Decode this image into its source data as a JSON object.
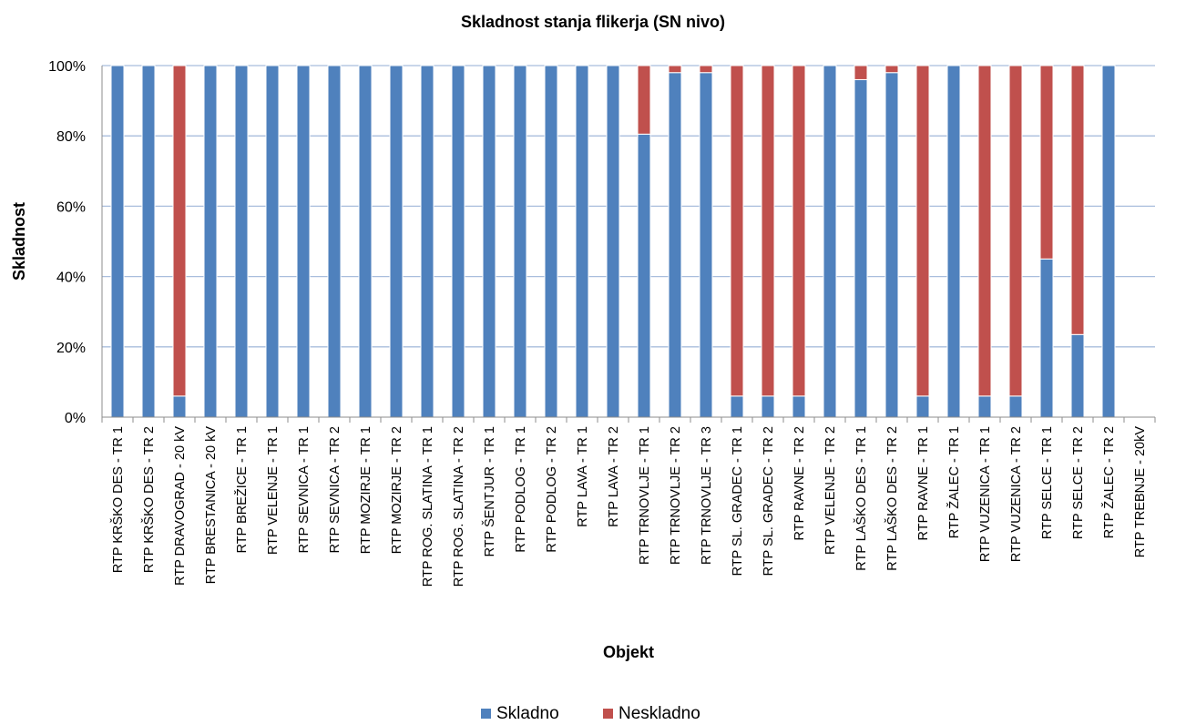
{
  "chart_data": {
    "type": "bar",
    "stacked": true,
    "title": "Skladnost stanja flikerja (SN nivo)",
    "xlabel": "Objekt",
    "ylabel": "Skladnost",
    "ylim": [
      0,
      100
    ],
    "yticks": [
      "0%",
      "20%",
      "40%",
      "60%",
      "80%",
      "100%"
    ],
    "grid": true,
    "legend_position": "bottom",
    "categories": [
      "RTP KRŠKO DES - TR 1",
      "RTP KRŠKO DES - TR 2",
      "RTP DRAVOGRAD - 20 kV",
      "RTP BRESTANICA - 20 kV",
      "RTP BREŽICE - TR 1",
      "RTP VELENJE - TR 1",
      "RTP SEVNICA - TR 1",
      "RTP SEVNICA - TR 2",
      "RTP MOZIRJE - TR 1",
      "RTP MOZIRJE - TR 2",
      "RTP ROG. SLATINA - TR 1",
      "RTP ROG. SLATINA - TR 2",
      "RTP ŠENTJUR - TR 1",
      "RTP PODLOG - TR 1",
      "RTP PODLOG - TR 2",
      "RTP LAVA - TR 1",
      "RTP LAVA - TR 2",
      "RTP TRNOVLJE - TR 1",
      "RTP TRNOVLJE - TR 2",
      "RTP TRNOVLJE - TR 3",
      "RTP SL. GRADEC - TR 1",
      "RTP SL. GRADEC - TR 2",
      "RTP RAVNE - TR 2",
      "RTP VELENJE - TR 2",
      "RTP LAŠKO DES - TR 1",
      "RTP LAŠKO DES - TR 2",
      "RTP RAVNE - TR 1",
      "RTP ŽALEC - TR 1",
      "RTP VUZENICA - TR 1",
      "RTP VUZENICA - TR 2",
      "RTP SELCE - TR 1",
      "RTP SELCE - TR 2",
      "RTP ŽALEC - TR 2",
      "RTP TREBNJE - 20kV"
    ],
    "series": [
      {
        "name": "Skladno",
        "color": "#4F81BD",
        "values": [
          100,
          100,
          6,
          100,
          100,
          100,
          100,
          100,
          100,
          100,
          100,
          100,
          100,
          100,
          100,
          100,
          100,
          80.5,
          98,
          98,
          6,
          6,
          6,
          100,
          96,
          98,
          6,
          100,
          6,
          6,
          45,
          23.5,
          100,
          0
        ]
      },
      {
        "name": "Neskladno",
        "color": "#C0504D",
        "values": [
          0,
          0,
          94,
          0,
          0,
          0,
          0,
          0,
          0,
          0,
          0,
          0,
          0,
          0,
          0,
          0,
          0,
          19.5,
          2,
          2,
          94,
          94,
          94,
          0,
          4,
          2,
          94,
          0,
          94,
          94,
          55,
          76.5,
          0,
          0
        ]
      }
    ]
  }
}
